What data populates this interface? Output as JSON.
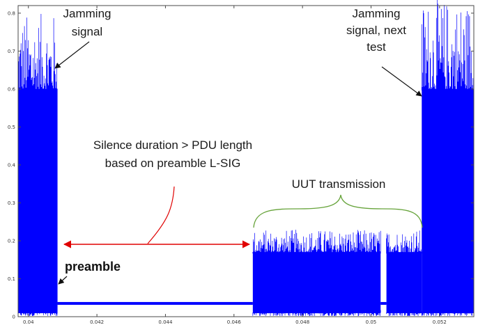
{
  "chart_data": {
    "type": "line",
    "title": "",
    "xlabel": "",
    "ylabel": "",
    "xlim": [
      0.0397,
      0.053
    ],
    "ylim": [
      0,
      0.82
    ],
    "grid": false,
    "legend": "none",
    "xticks": [
      "0.04",
      "0.042",
      "0.044",
      "0.046",
      "0.048",
      "0.05",
      "0.052"
    ],
    "xtick_values": [
      0.04,
      0.042,
      0.044,
      0.046,
      0.048,
      0.05,
      0.052
    ],
    "yticks": [
      "0",
      "0.1",
      "0.2",
      "0.3",
      "0.4",
      "0.5",
      "0.6",
      "0.7",
      "0.8"
    ],
    "ytick_values": [
      0,
      0.1,
      0.2,
      0.3,
      0.4,
      0.5,
      0.6,
      0.7,
      0.8
    ],
    "series": [
      {
        "color": "#0000ff",
        "segments": [
          {
            "x_start": 0.0397,
            "x_end": 0.04085,
            "level": "noise",
            "base": 0.6,
            "peak": 0.8
          },
          {
            "x_start": 0.04085,
            "x_end": 0.04655,
            "level": "constant",
            "value": 0.035
          },
          {
            "x_start": 0.04655,
            "x_end": 0.05028,
            "level": "noise",
            "base": 0.17,
            "peak": 0.23
          },
          {
            "x_start": 0.05028,
            "x_end": 0.05045,
            "level": "constant",
            "value": 0.035
          },
          {
            "x_start": 0.05045,
            "x_end": 0.05148,
            "level": "noise",
            "base": 0.17,
            "peak": 0.23
          },
          {
            "x_start": 0.05148,
            "x_end": 0.053,
            "level": "noise",
            "base": 0.6,
            "peak": 0.84
          }
        ]
      }
    ],
    "annotations": [
      {
        "id": "jamming",
        "lines": [
          "Jamming",
          "signal"
        ]
      },
      {
        "id": "jamming_next",
        "lines": [
          "Jamming",
          "signal, next",
          "test"
        ]
      },
      {
        "id": "silence",
        "lines": [
          "Silence duration  > PDU length",
          "based on preamble L-SIG"
        ]
      },
      {
        "id": "uut",
        "lines": [
          "UUT transmission"
        ]
      },
      {
        "id": "preamble",
        "lines": [
          "preamble"
        ]
      }
    ],
    "annotation_colors": {
      "arrow": "#111111",
      "duration": "#e00000",
      "brace": "#66a33a"
    }
  }
}
